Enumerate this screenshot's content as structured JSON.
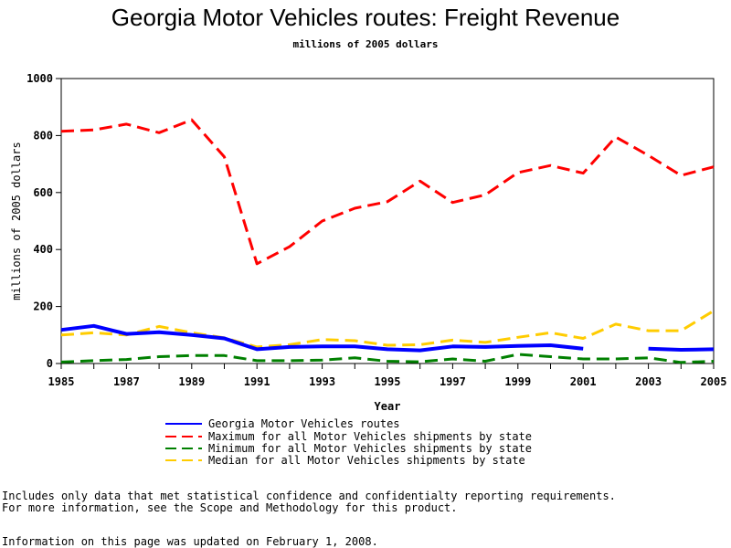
{
  "chart_data": {
    "type": "line",
    "title": "Georgia Motor Vehicles routes: Freight Revenue",
    "subtitle": "millions of 2005 dollars",
    "xlabel": "Year",
    "ylabel": "millions of 2005 dollars",
    "xlim": [
      1985,
      2005
    ],
    "ylim": [
      0,
      1000
    ],
    "x": [
      1985,
      1986,
      1987,
      1988,
      1989,
      1990,
      1991,
      1992,
      1993,
      1994,
      1995,
      1996,
      1997,
      1998,
      1999,
      2000,
      2001,
      2002,
      2003,
      2004,
      2005
    ],
    "xticks": [
      "1985",
      "1987",
      "1989",
      "1991",
      "1993",
      "1995",
      "1997",
      "1999",
      "2001",
      "2003",
      "2005"
    ],
    "yticks": [
      "0",
      "200",
      "400",
      "600",
      "800",
      "1000"
    ],
    "series": [
      {
        "name": "Georgia Motor Vehicles routes",
        "color": "#0000ff",
        "style": "solid",
        "values": [
          118,
          132,
          104,
          110,
          100,
          88,
          50,
          58,
          60,
          60,
          50,
          46,
          60,
          58,
          62,
          64,
          52,
          null,
          52,
          48,
          50
        ]
      },
      {
        "name": "Maximum for all Motor Vehicles shipments by state",
        "color": "#ff0000",
        "style": "dashed",
        "values": [
          815,
          820,
          840,
          810,
          855,
          725,
          350,
          410,
          500,
          545,
          568,
          640,
          565,
          592,
          670,
          695,
          668,
          795,
          730,
          660,
          690
        ]
      },
      {
        "name": "Minimum for all Motor Vehicles shipments by state",
        "color": "#008000",
        "style": "dashed",
        "values": [
          5,
          10,
          14,
          24,
          28,
          28,
          10,
          10,
          12,
          20,
          8,
          6,
          16,
          8,
          32,
          24,
          16,
          16,
          20,
          4,
          8
        ]
      },
      {
        "name": "Median for all Motor Vehicles shipments by state",
        "color": "#ffcc00",
        "style": "dashed",
        "values": [
          100,
          108,
          100,
          130,
          108,
          90,
          58,
          66,
          84,
          80,
          64,
          66,
          82,
          74,
          92,
          108,
          88,
          138,
          115,
          115,
          185
        ]
      }
    ]
  },
  "footnotes": {
    "line1": "Includes only data that met statistical confidence and confidentialty reporting requirements.",
    "line2": "For more information, see the Scope and Methodology for this product.",
    "line3": "Information on this page was updated on February 1, 2008."
  }
}
